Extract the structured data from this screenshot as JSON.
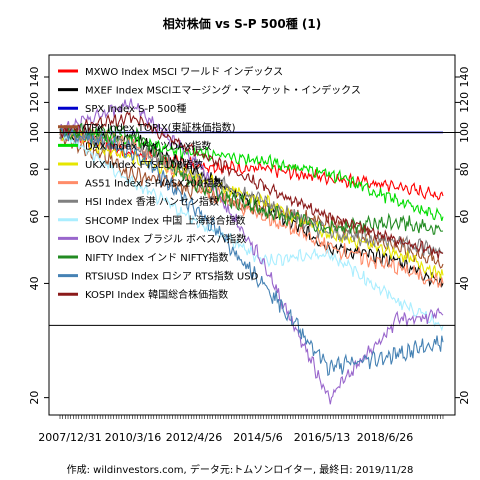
{
  "chart_data": {
    "type": "line",
    "title": "相対株価 vs S-P 500種 (1)",
    "footer": "作成: wildinvestors.com, データ元:トムソンロイター, 最終日: 2019/11/28",
    "x_tick_labels": [
      "2007/12/31",
      "2010/3/16",
      "2012/4/26",
      "2014/5/6",
      "2016/5/13",
      "2018/6/26"
    ],
    "x_range": [
      "2007-12-31",
      "2019-11-28"
    ],
    "y_scale": "log",
    "ylim": [
      18,
      160
    ],
    "y_ticks": [
      20,
      40,
      60,
      80,
      100,
      120,
      140
    ],
    "reference_lines": [
      100,
      31
    ],
    "legend_position": "top-left",
    "x": [
      "2007-12-31",
      "2010-03-16",
      "2012-04-26",
      "2014-05-06",
      "2016-05-13",
      "2018-06-26",
      "2019-11-28"
    ],
    "series": [
      {
        "name": "MXWO Index MSCI ワールド インデックス",
        "color": "#ff0000",
        "values": [
          100,
          88,
          82,
          80,
          76,
          72,
          68
        ]
      },
      {
        "name": "MXEF Index MSCIエマージング・マーケット・インデックス",
        "color": "#000000",
        "values": [
          100,
          98,
          78,
          64,
          50,
          46,
          40
        ]
      },
      {
        "name": "SPX Index S-P 500種",
        "color": "#0000cc",
        "values": [
          100,
          100,
          100,
          100,
          100,
          100,
          100
        ]
      },
      {
        "name": "TPX Index TOPIX(東証株価指数)",
        "color": "#a0522d",
        "values": [
          100,
          78,
          70,
          62,
          58,
          50,
          45
        ]
      },
      {
        "name": "DAX Index ドイツDAX指数",
        "color": "#00dd00",
        "values": [
          100,
          95,
          88,
          84,
          78,
          66,
          60
        ]
      },
      {
        "name": "UKX Index FTSE100指数",
        "color": "#e6e600",
        "values": [
          100,
          86,
          76,
          66,
          54,
          48,
          42
        ]
      },
      {
        "name": "AS51 Index S-P/ASX200指数",
        "color": "#ff8c69",
        "values": [
          100,
          94,
          72,
          60,
          50,
          44,
          40
        ]
      },
      {
        "name": "HSI Index 香港 ハンセン指数",
        "color": "#808080",
        "values": [
          100,
          92,
          76,
          66,
          54,
          52,
          48
        ]
      },
      {
        "name": "SHCOMP Index 中国 上海総合指数",
        "color": "#aaeeff",
        "values": [
          100,
          74,
          58,
          46,
          48,
          36,
          31
        ]
      },
      {
        "name": "IBOV Index ブラジル ボベスパ指数",
        "color": "#9966cc",
        "values": [
          100,
          120,
          82,
          45,
          20,
          32,
          33
        ]
      },
      {
        "name": "NIFTY Index インド NIFTY指数",
        "color": "#228b22",
        "values": [
          100,
          100,
          72,
          62,
          56,
          58,
          55
        ]
      },
      {
        "name": "RTSIUSD Index ロシア RTS指数 USD",
        "color": "#4682b4",
        "values": [
          100,
          90,
          62,
          40,
          24,
          26,
          28
        ]
      },
      {
        "name": "KOSPI Index 韓国総合株価指数",
        "color": "#8b1a1a",
        "values": [
          100,
          110,
          88,
          72,
          60,
          52,
          48
        ]
      }
    ]
  }
}
